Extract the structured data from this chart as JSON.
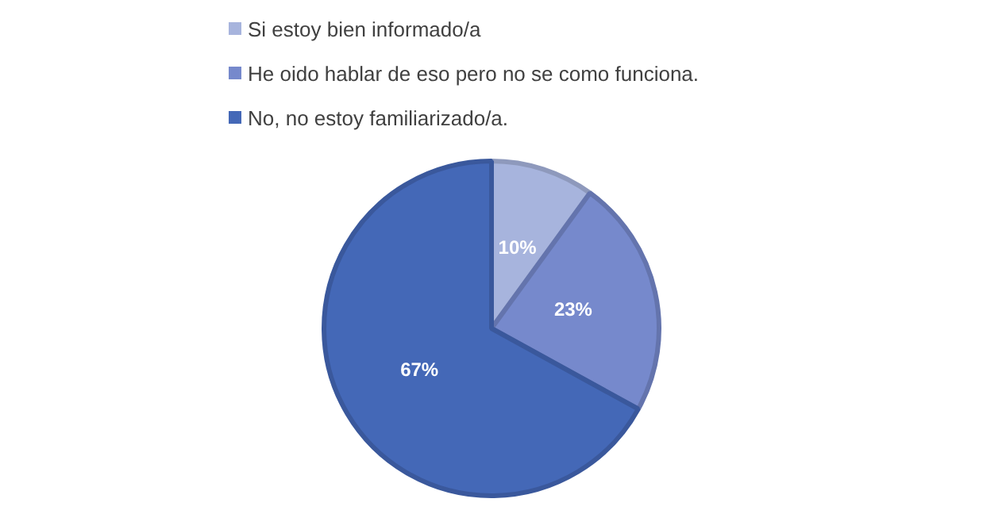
{
  "chart_data": {
    "type": "pie",
    "categories": [
      "Si estoy bien informado/a",
      "He oido hablar de eso pero no se como funciona.",
      "No, no estoy familiarizado/a."
    ],
    "values": [
      10,
      23,
      67
    ],
    "colors": [
      "#a7b4dd",
      "#7689cc",
      "#4468b7"
    ],
    "value_labels": [
      "10%",
      "23%",
      "67%"
    ],
    "legend": "top"
  }
}
